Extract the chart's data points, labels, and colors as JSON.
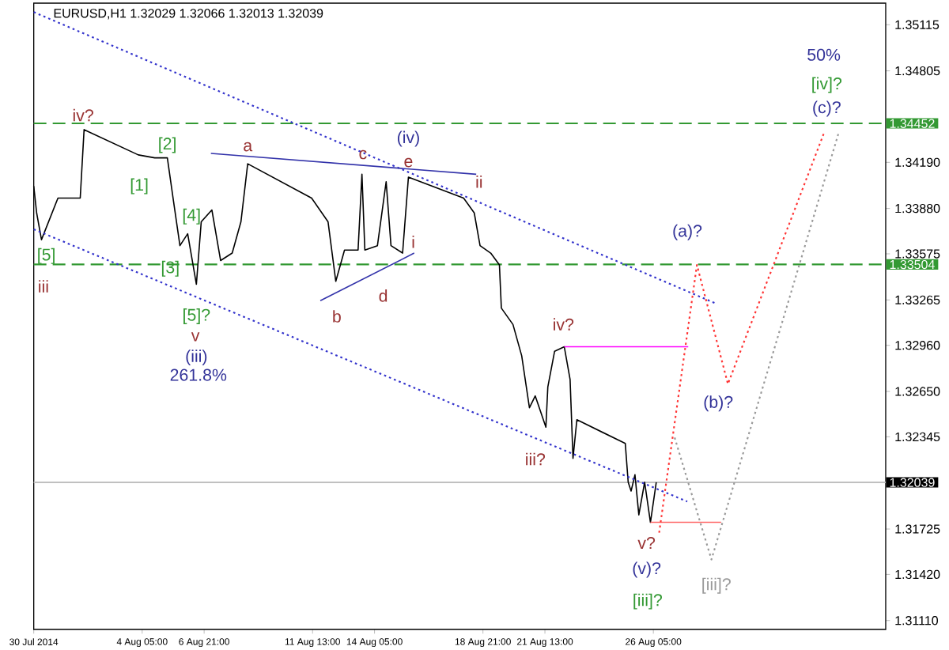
{
  "chart_data": {
    "type": "line",
    "title": "EURUSD,H1  1.32029 1.32066 1.32013 1.32039",
    "xlim": [
      "2014-07-30T13:00",
      "2014-09-05T05:00"
    ],
    "ylim": [
      1.3105,
      1.3526
    ],
    "xticks": [
      {
        "value": "2014-07-30T13:00",
        "label": "30 Jul 2014"
      },
      {
        "value": "2014-08-04T05:00",
        "label": "4 Aug 05:00"
      },
      {
        "value": "2014-08-06T21:00",
        "label": "6 Aug 21:00"
      },
      {
        "value": "2014-08-11T13:00",
        "label": "11 Aug 13:00"
      },
      {
        "value": "2014-08-14T05:00",
        "label": "14 Aug 05:00"
      },
      {
        "value": "2014-08-18T21:00",
        "label": "18 Aug 21:00"
      },
      {
        "value": "2014-08-21T13:00",
        "label": "21 Aug 13:00"
      },
      {
        "value": "2014-08-26T05:00",
        "label": "26 Aug 05:00"
      }
    ],
    "yticks": [
      {
        "value": 1.3111,
        "label": "1.31110"
      },
      {
        "value": 1.3142,
        "label": "1.31420"
      },
      {
        "value": 1.31725,
        "label": "1.31725"
      },
      {
        "value": 1.32345,
        "label": "1.32345"
      },
      {
        "value": 1.3265,
        "label": "1.32650"
      },
      {
        "value": 1.3296,
        "label": "1.32960"
      },
      {
        "value": 1.33265,
        "label": "1.33265"
      },
      {
        "value": 1.33575,
        "label": "1.33575"
      },
      {
        "value": 1.3388,
        "label": "1.33880"
      },
      {
        "value": 1.3419,
        "label": "1.34190"
      },
      {
        "value": 1.34805,
        "label": "1.34805"
      },
      {
        "value": 1.35115,
        "label": "1.35115"
      }
    ],
    "series": [
      {
        "color": "#000000",
        "line_style": "solid",
        "x": [
          "2014-07-30T13:00",
          "2014-07-30T16:00",
          "2014-07-30T21:00",
          "2014-07-31T14:00",
          "2014-08-01T13:00",
          "2014-08-01T17:00",
          "2014-08-04T01:00",
          "2014-08-04T18:00",
          "2014-08-05T07:00",
          "2014-08-05T14:00",
          "2014-08-05T20:00",
          "2014-08-06T04:00",
          "2014-08-06T13:00",
          "2014-08-06T18:00",
          "2014-08-07T05:00",
          "2014-08-07T14:00",
          "2014-08-08T02:00",
          "2014-08-08T11:00",
          "2014-08-08T18:00",
          "2014-08-11T12:00",
          "2014-08-12T05:00",
          "2014-08-12T13:00",
          "2014-08-12T22:00",
          "2014-08-13T12:00",
          "2014-08-13T16:00",
          "2014-08-13T19:00",
          "2014-08-14T08:00",
          "2014-08-14T17:00",
          "2014-08-14T22:00",
          "2014-08-15T10:00",
          "2014-08-15T16:00",
          "2014-08-18T01:00",
          "2014-08-18T12:00",
          "2014-08-18T18:00",
          "2014-08-19T05:00",
          "2014-08-19T14:00",
          "2014-08-19T16:00",
          "2014-08-20T04:00",
          "2014-08-20T13:00",
          "2014-08-20T21:00",
          "2014-08-21T03:00",
          "2014-08-21T14:00",
          "2014-08-21T16:00",
          "2014-08-21T23:00",
          "2014-08-22T09:00",
          "2014-08-22T15:00",
          "2014-08-22T18:00",
          "2014-08-22T22:00",
          "2014-08-25T00:00",
          "2014-08-25T03:00",
          "2014-08-25T06:00",
          "2014-08-25T10:00",
          "2014-08-25T14:00",
          "2014-08-25T20:00",
          "2014-08-26T02:00",
          "2014-08-26T08:00"
        ],
        "values": [
          1.3403,
          1.3385,
          1.3367,
          1.3395,
          1.3395,
          1.3441,
          1.3424,
          1.3422,
          1.3422,
          1.339,
          1.3363,
          1.3371,
          1.3337,
          1.3379,
          1.3387,
          1.3353,
          1.3358,
          1.3379,
          1.3418,
          1.3395,
          1.3379,
          1.3339,
          1.336,
          1.336,
          1.3411,
          1.336,
          1.3363,
          1.3406,
          1.3363,
          1.3358,
          1.3409,
          1.3395,
          1.3385,
          1.3363,
          1.3358,
          1.335,
          1.3321,
          1.331,
          1.3289,
          1.3254,
          1.3262,
          1.3241,
          1.3268,
          1.3292,
          1.3295,
          1.3273,
          1.322,
          1.3246,
          1.323,
          1.3204,
          1.3198,
          1.3209,
          1.3182,
          1.3204,
          1.3177,
          1.32039
        ]
      },
      {
        "color": "#3333cc",
        "line_style": "dotted",
        "x": [
          "2014-07-30T13:00",
          "2014-08-28T22:00"
        ],
        "values": [
          1.352,
          1.3324
        ]
      },
      {
        "color": "#3333cc",
        "line_style": "dotted",
        "x": [
          "2014-07-30T13:00",
          "2014-08-27T16:00"
        ],
        "values": [
          1.3374,
          1.3191
        ]
      },
      {
        "color": "#3333aa",
        "line_style": "solid",
        "x": [
          "2014-08-07T04:00",
          "2014-08-18T14:00"
        ],
        "values": [
          1.3425,
          1.3411
        ]
      },
      {
        "color": "#3333aa",
        "line_style": "solid",
        "x": [
          "2014-08-11T21:00",
          "2014-08-15T22:00"
        ],
        "values": [
          1.3326,
          1.3358
        ]
      },
      {
        "color": "#ff00ff",
        "line_style": "solid",
        "x": [
          "2014-08-22T09:00",
          "2014-08-27T17:00"
        ],
        "values": [
          1.3295,
          1.3295
        ]
      },
      {
        "color": "#ff6666",
        "line_style": "solid",
        "x": [
          "2014-08-26T02:00",
          "2014-08-29T03:00"
        ],
        "values": [
          1.3177,
          1.3177
        ]
      },
      {
        "color": "#ff3333",
        "line_style": "dotted",
        "x": [
          "2014-08-26T11:00",
          "2014-08-28T02:00",
          "2014-08-29T10:00",
          "2014-09-02T14:00"
        ],
        "values": [
          1.317,
          1.335,
          1.327,
          1.344
        ]
      },
      {
        "color": "#999999",
        "line_style": "dotted",
        "x": [
          "2014-08-27T03:00",
          "2014-08-28T17:00",
          "2014-09-03T04:00"
        ],
        "values": [
          1.3234,
          1.3152,
          1.3438
        ]
      }
    ],
    "ref_lines": [
      {
        "axis": "y",
        "value": 1.34452,
        "label": "1.34452",
        "color": "#339933",
        "line_style": "dashed"
      },
      {
        "axis": "y",
        "value": 1.33504,
        "label": "1.33504",
        "color": "#339933",
        "line_style": "dashed"
      },
      {
        "axis": "y",
        "value": 1.32039,
        "label": "1.32039",
        "color": "#c0c0c0",
        "line_style": "solid"
      }
    ],
    "annotations": [
      "iv?",
      "[1]",
      "[2]",
      "[3]",
      "[4]",
      "[5]",
      "iii",
      "[5]?",
      "v",
      "(iii)",
      "261.8%",
      "a",
      "b",
      "c",
      "d",
      "e",
      "(iv)",
      "ii",
      "i",
      "iv?",
      "iii?",
      "v?",
      "(v)?",
      "[iii]?",
      "[iii]?",
      "(a)?",
      "(b)?",
      "(c)?",
      "[iv]?",
      "50%"
    ]
  }
}
